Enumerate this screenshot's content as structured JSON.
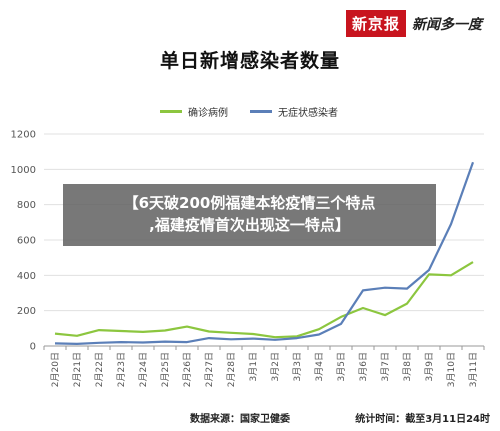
{
  "brand": {
    "logo_red": "新京报",
    "logo_text": "新闻多一度"
  },
  "overlay": {
    "line1": "【6天破200例福建本轮疫情三个特点",
    "line2": ",福建疫情首次出现这一特点】"
  },
  "footer": {
    "source": "数据来源：国家卫健委",
    "stat_time": "统计时间：截至3月11日24时"
  },
  "colors": {
    "confirmed": "#8cc63f",
    "asymptomatic": "#5b7fb8",
    "grid": "#e0e0e0",
    "axis_text": "#555555"
  },
  "chart_data": {
    "type": "line",
    "title": "单日新增感染者数量",
    "xlabel": "",
    "ylabel": "",
    "ylim": [
      0,
      1200
    ],
    "yticks": [
      0,
      200,
      400,
      600,
      800,
      1000,
      1200
    ],
    "grid": true,
    "legend_position": "top",
    "x": [
      "2月20日",
      "2月21日",
      "2月22日",
      "2月23日",
      "2月24日",
      "2月25日",
      "2月26日",
      "2月27日",
      "2月28日",
      "3月1日",
      "3月2日",
      "3月3日",
      "3月4日",
      "3月5日",
      "3月6日",
      "3月7日",
      "3月8日",
      "3月9日",
      "3月10日",
      "3月11日"
    ],
    "series": [
      {
        "name": "确诊病例",
        "color_key": "confirmed",
        "values": [
          70,
          58,
          90,
          85,
          80,
          88,
          110,
          82,
          75,
          68,
          50,
          55,
          95,
          165,
          215,
          175,
          240,
          405,
          400,
          475
        ]
      },
      {
        "name": "无症状感染者",
        "color_key": "asymptomatic",
        "values": [
          15,
          12,
          18,
          22,
          20,
          25,
          22,
          45,
          38,
          42,
          35,
          45,
          65,
          125,
          315,
          330,
          325,
          430,
          690,
          1040
        ]
      }
    ]
  }
}
